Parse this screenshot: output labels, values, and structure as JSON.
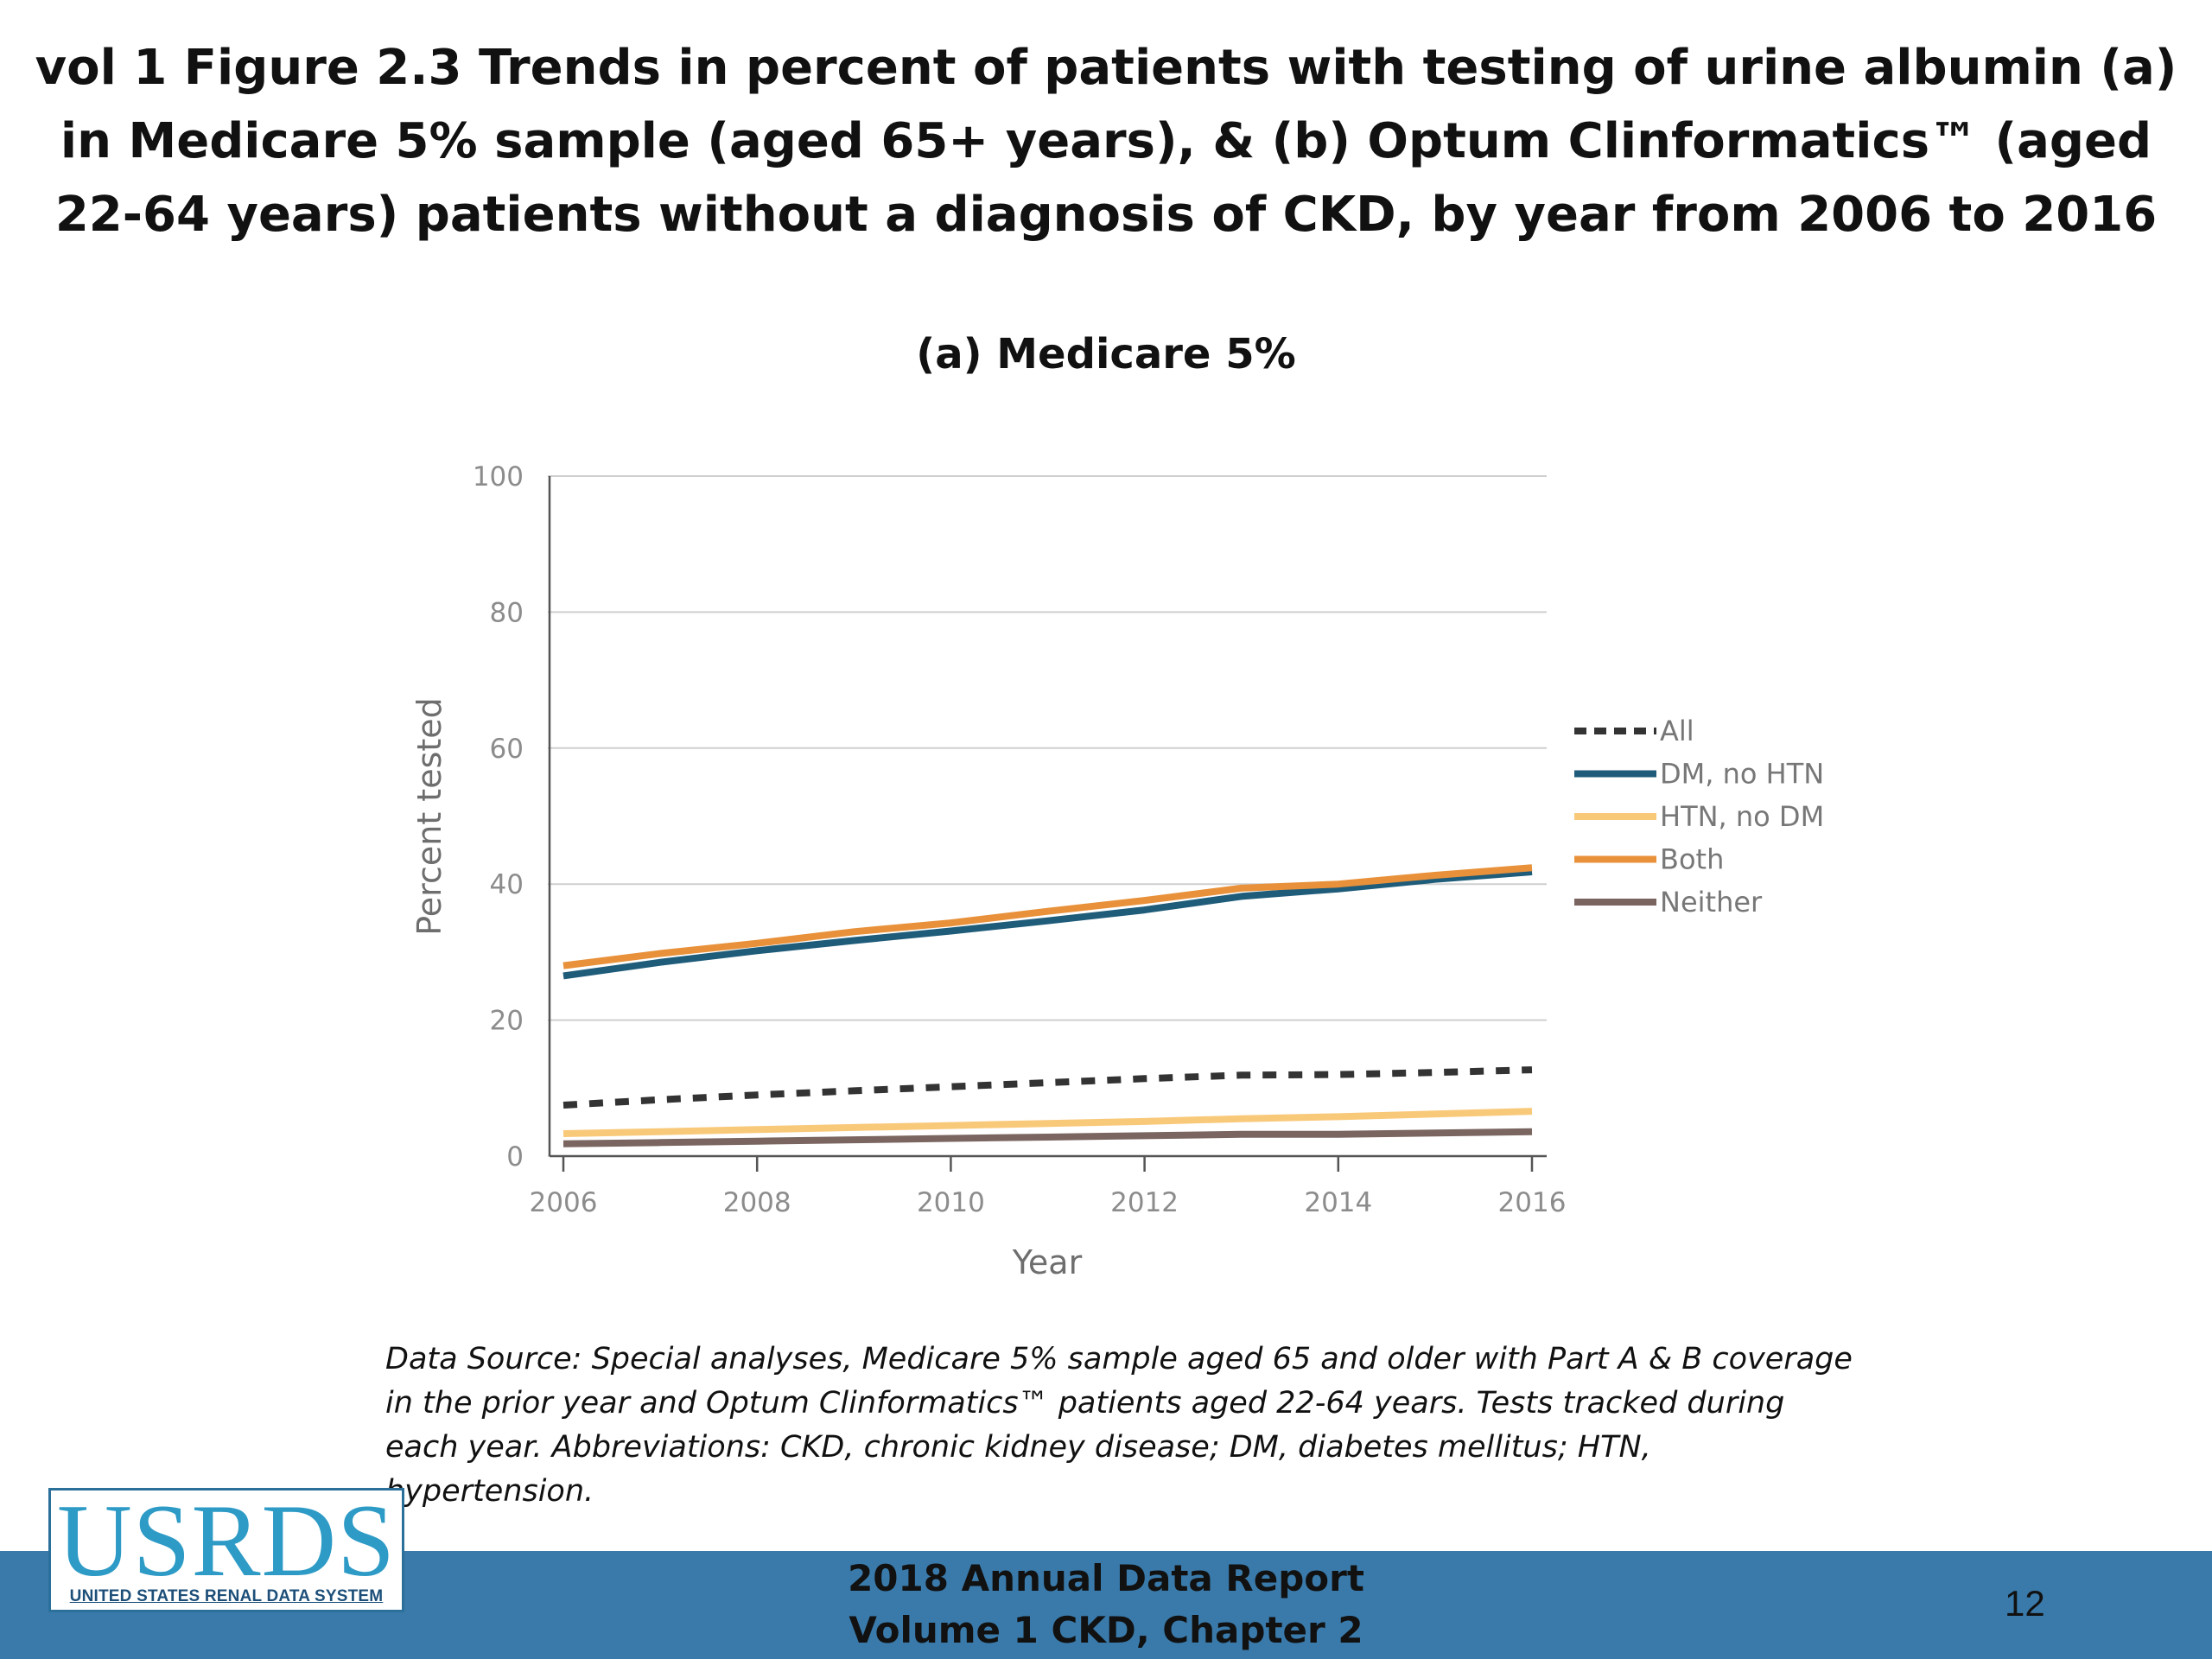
{
  "slide": {
    "title": "vol 1 Figure 2.3 Trends in percent of patients with testing of urine albumin (a) in Medicare 5% sample (aged 65+ years), & (b) Optum Clinformatics™ (aged 22-64 years) patients without a diagnosis of CKD, by year from 2006 to 2016",
    "data_source": "Data Source: Special analyses, Medicare 5% sample aged 65 and older with Part A & B coverage in the prior year and Optum Clinformatics™ patients aged 22-64 years. Tests tracked during each year. Abbreviations: CKD, chronic kidney disease; DM, diabetes mellitus; HTN, hypertension.",
    "footer_line1": "2018 Annual Data Report",
    "footer_line2": "Volume 1 CKD, Chapter 2",
    "page_number": "12",
    "logo_text": "USRDS",
    "logo_subtext": "UNITED STATES RENAL DATA SYSTEM",
    "footer_color": "#3a7aaa"
  },
  "chart_data": {
    "type": "line",
    "title": "(a) Medicare 5%",
    "xlabel": "Year",
    "ylabel": "Percent tested",
    "xlim": [
      2006,
      2016
    ],
    "ylim": [
      0,
      100
    ],
    "x_ticks": [
      2006,
      2008,
      2010,
      2012,
      2014,
      2016
    ],
    "y_ticks": [
      0,
      20,
      40,
      60,
      80,
      100
    ],
    "grid": "horizontal",
    "legend_position": "right",
    "x": [
      2006,
      2007,
      2008,
      2009,
      2010,
      2011,
      2012,
      2013,
      2014,
      2015,
      2016
    ],
    "series": [
      {
        "name": "All",
        "color": "#333333",
        "dash": true,
        "values": [
          7.5,
          8.3,
          9.0,
          9.6,
          10.2,
          10.8,
          11.4,
          11.9,
          12.0,
          12.3,
          12.7
        ]
      },
      {
        "name": "DM, no HTN",
        "color": "#1f5c7a",
        "dash": false,
        "values": [
          26.5,
          28.5,
          30.2,
          31.7,
          33.1,
          34.6,
          36.2,
          38.2,
          39.3,
          40.7,
          41.8
        ]
      },
      {
        "name": "HTN, no DM",
        "color": "#f9c97a",
        "dash": false,
        "values": [
          3.3,
          3.6,
          3.9,
          4.2,
          4.5,
          4.8,
          5.1,
          5.5,
          5.8,
          6.2,
          6.6
        ]
      },
      {
        "name": "Both",
        "color": "#e8913a",
        "dash": false,
        "values": [
          28.0,
          29.8,
          31.3,
          33.0,
          34.3,
          36.0,
          37.6,
          39.4,
          40.0,
          41.3,
          42.4
        ]
      },
      {
        "name": "Neither",
        "color": "#7a6560",
        "dash": false,
        "values": [
          1.8,
          2.0,
          2.2,
          2.4,
          2.6,
          2.8,
          3.0,
          3.2,
          3.2,
          3.4,
          3.6
        ]
      }
    ]
  }
}
